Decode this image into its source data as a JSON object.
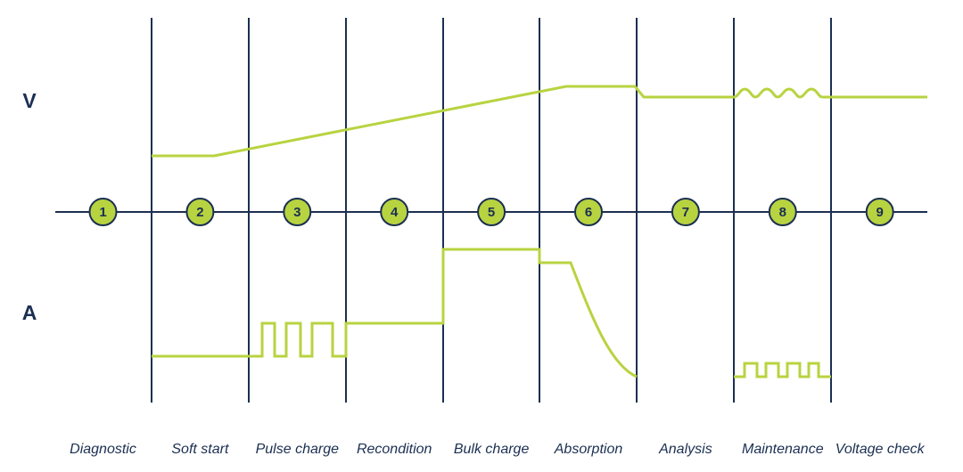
{
  "axis_labels": {
    "voltage": "V",
    "current": "A"
  },
  "stages": [
    {
      "number": "1",
      "name": "Diagnostic"
    },
    {
      "number": "2",
      "name": "Soft start"
    },
    {
      "number": "3",
      "name": "Pulse charge"
    },
    {
      "number": "4",
      "name": "Recondition"
    },
    {
      "number": "5",
      "name": "Bulk charge"
    },
    {
      "number": "6",
      "name": "Absorption"
    },
    {
      "number": "7",
      "name": "Analysis"
    },
    {
      "number": "8",
      "name": "Maintenance"
    },
    {
      "number": "9",
      "name": "Voltage check"
    }
  ]
}
